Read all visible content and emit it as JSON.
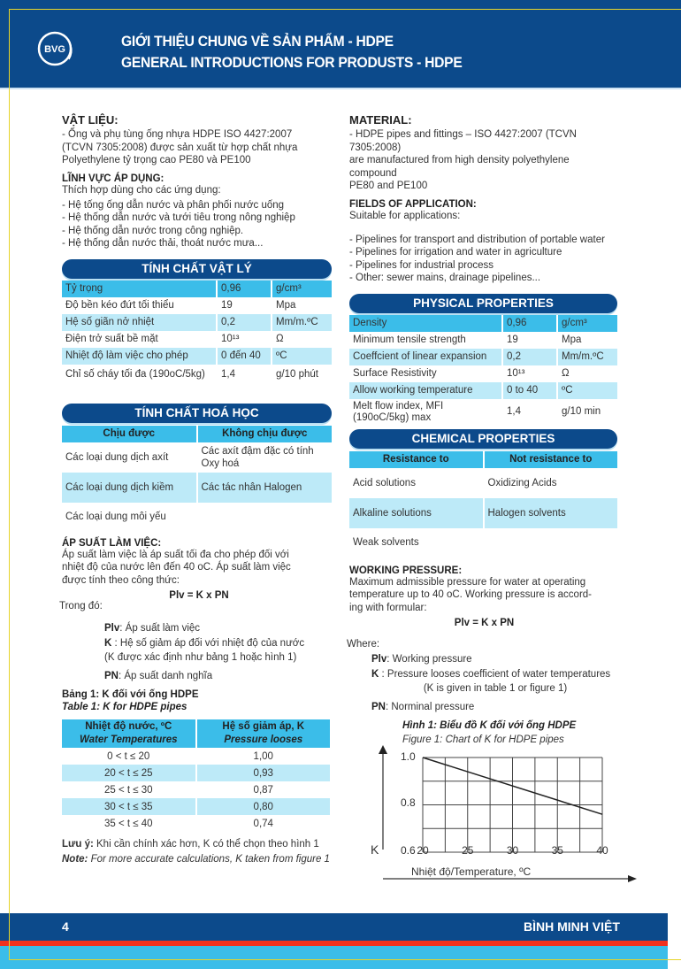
{
  "header": {
    "title_vi": "GIỚI THIỆU CHUNG VỀ SẢN PHẨM - HDPE",
    "title_en": "GENERAL INTRODUCTIONS FOR PRODUSTS - HDPE",
    "logo_text": "BVG"
  },
  "left": {
    "material_heading": "VẬT LIỆU:",
    "material_text": [
      "- Ống và phụ tùng ống nhựa HDPE ISO 4427:2007",
      "(TCVN 7305:2008) được sản xuất từ hợp chất nhựa",
      "Polyethylene tỷ trọng cao PE80 và PE100"
    ],
    "fields_heading": "LĨNH VỰC ÁP DỤNG:",
    "fields_intro": "Thích hợp dùng cho các ứng dụng:",
    "fields_items": [
      "- Hệ tống ống dẫn nước và phân phối nước uống",
      "- Hệ thống dẫn nước và tưới tiêu trong nông nghiệp",
      "- Hệ thống dẫn nước trong công nghiệp.",
      "- Hệ thống dẫn nước thải, thoát nước mưa..."
    ],
    "physical_title": "TÍNH CHẤT VẬT LÝ",
    "physical_rows": [
      [
        "Tỷ trọng",
        "0,96",
        "g/cm³"
      ],
      [
        "Độ bền kéo đứt tối thiểu",
        "19",
        "Mpa"
      ],
      [
        "Hệ số giãn nở nhiệt",
        "0,2",
        "Mm/m.ºC"
      ],
      [
        "Điện trở suất bề mặt",
        "10¹³",
        "Ω"
      ],
      [
        "Nhiệt độ làm việc cho phép",
        "0 đến 40",
        "ºC"
      ],
      [
        "Chỉ số cháy tối đa (190oC/5kg)",
        "1,4",
        "g/10 phút"
      ]
    ],
    "chemical_title": "TÍNH CHẤT HOÁ HỌC",
    "chemical_headers": [
      "Chịu được",
      "Không chịu được"
    ],
    "chemical_rows": [
      [
        "Các loại dung dịch axít",
        "Các axít đậm đặc có tính Oxy hoá"
      ],
      [
        "Các loại dung dịch kiềm",
        "Các tác nhân Halogen"
      ],
      [
        "Các loại dung môi yếu",
        ""
      ]
    ],
    "pressure_heading": "ÁP SUẤT LÀM VIỆC:",
    "pressure_text": [
      "Áp suất làm việc là áp suất tối đa cho phép đối với",
      "nhiệt độ của nước lên đến 40 oC. Áp suất làm việc",
      "được tính theo công thức:"
    ],
    "formula": "Plv = K x PN",
    "where": "Trong đó:",
    "defs": [
      {
        "term": "Plv",
        "text": ": Áp suất làm việc"
      },
      {
        "term": "K",
        "text": "  : Hệ số giảm áp đối với nhiệt độ của nước"
      },
      {
        "term": "",
        "text": "(K được xác định như bảng 1 hoặc hình 1)"
      },
      {
        "term": "PN",
        "text": ": Áp suất danh nghĩa"
      }
    ],
    "table1_title_vi": "Bảng 1: K đối với ống HDPE",
    "table1_title_en": "Table 1: K for HDPE pipes",
    "table1_headers": [
      [
        "Nhiệt độ nước, ºC",
        "Water Temperatures"
      ],
      [
        "Hệ số giảm áp, K",
        "Pressure looses"
      ]
    ],
    "table1_rows": [
      [
        "0 < t ≤ 20",
        "1,00"
      ],
      [
        "20 < t ≤ 25",
        "0,93"
      ],
      [
        "25 < t ≤ 30",
        "0,87"
      ],
      [
        "30 < t ≤ 35",
        "0,80"
      ],
      [
        "35 < t ≤ 40",
        "0,74"
      ]
    ],
    "note_vi_label": "Lưu ý:",
    "note_vi": " Khi cần chính xác hơn, K có thể chọn theo hình 1",
    "note_en_label": "Note:",
    "note_en": " For more accurate calculations, K taken from figure 1"
  },
  "right": {
    "material_heading": "MATERIAL:",
    "material_text": [
      "- HDPE pipes and fittings – ISO 4427:2007 (TCVN 7305:2008)",
      "are manufactured from high density polyethylene compound",
      "PE80 and PE100"
    ],
    "fields_heading": "FIELDS OF APPLICATION:",
    "fields_intro": "Suitable for applications:",
    "fields_items": [
      "- Pipelines for transport and distribution of portable water",
      "- Pipelines for irrigation and water in agriculture",
      "- Pipelines for industrial process",
      "- Other: sewer mains, drainage pipelines..."
    ],
    "physical_title": "PHYSICAL PROPERTIES",
    "physical_rows": [
      [
        "Density",
        "0,96",
        "g/cm³"
      ],
      [
        "Minimum tensile strength",
        "19",
        "Mpa"
      ],
      [
        "Coeffcient of linear expansion",
        "0,2",
        "Mm/m.ºC"
      ],
      [
        "Surface Resistivity",
        "10¹³",
        "Ω"
      ],
      [
        "Allow working temperature",
        "0 to 40",
        "ºC"
      ],
      [
        "Melt flow index, MFI (190oC/5kg) max",
        "1,4",
        "g/10 min"
      ]
    ],
    "chemical_title": "CHEMICAL PROPERTIES",
    "chemical_headers": [
      "Resistance to",
      "Not resistance to"
    ],
    "chemical_rows": [
      [
        "Acid solutions",
        "Oxidizing Acids"
      ],
      [
        "Alkaline solutions",
        "Halogen solvents"
      ],
      [
        "Weak solvents",
        ""
      ]
    ],
    "pressure_heading": "WORKING PRESSURE:",
    "pressure_text": [
      "Maximum admissible pressure for water at operating",
      "temperature up to 40 oC. Working pressure is accord-",
      "ing with formular:"
    ],
    "formula": "Plv = K x PN",
    "where": "Where:",
    "defs": [
      {
        "term": "Plv",
        "text": ": Working pressure"
      },
      {
        "term": "K",
        "text": " : Pressure looses coefficient of water temperatures"
      },
      {
        "term": "",
        "text": "(K is given in table 1 or figure 1)"
      },
      {
        "term": "PN",
        "text": ": Norminal pressure"
      }
    ],
    "figure_title_vi": "Hình 1: Biểu đồ K đối với ống HDPE",
    "figure_title_en": "Figure 1: Chart of K for HDPE  pipes"
  },
  "chart_data": {
    "type": "line",
    "x": [
      20,
      40
    ],
    "y": [
      1.0,
      0.76
    ],
    "xlim": [
      20,
      40
    ],
    "ylim": [
      0.6,
      1.0
    ],
    "xticks": [
      "20",
      "25",
      "30",
      "35",
      "40"
    ],
    "yticks": [
      "1.0",
      "0.8",
      "0.6"
    ],
    "xlabel": "Nhiệt độ/Temperature, ºC",
    "ylabel": "K",
    "grid": true
  },
  "footer": {
    "page": "4",
    "brand": "BÌNH MINH VIỆT"
  },
  "colors": {
    "dark_blue": "#0c4a8b",
    "cyan": "#3bbde9",
    "light_cyan": "#bdeaf8",
    "red": "#f2321e"
  }
}
